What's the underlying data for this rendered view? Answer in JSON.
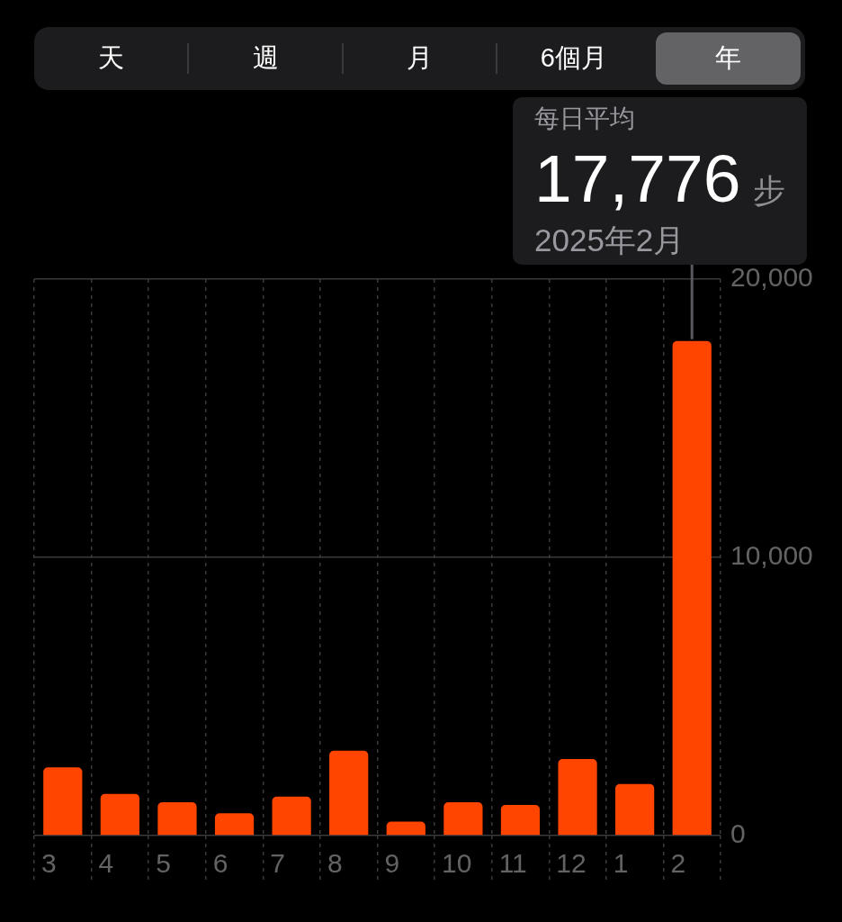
{
  "chart_data": {
    "type": "bar",
    "categories": [
      "3",
      "4",
      "5",
      "6",
      "7",
      "8",
      "9",
      "10",
      "11",
      "12",
      "1",
      "2"
    ],
    "values": [
      2450,
      1500,
      1200,
      800,
      1400,
      3050,
      500,
      1200,
      1100,
      2750,
      1850,
      17776
    ],
    "color": "#ff4500",
    "ylim": [
      0,
      20000
    ],
    "yticks": [
      0,
      {
        "value": 10000,
        "label": "10,000"
      },
      {
        "value": 20000,
        "label": "20,000"
      }
    ],
    "grid": true,
    "annotations": [
      "天",
      "週",
      "月",
      "6個月",
      "年",
      "每日平均",
      {
        "text": "17,776",
        "x": "2",
        "y": 17776
      },
      "步",
      "2025年2月"
    ]
  }
}
